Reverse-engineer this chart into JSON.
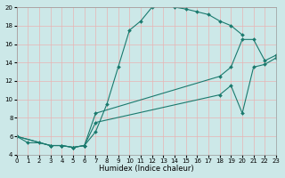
{
  "xlabel": "Humidex (Indice chaleur)",
  "xlim": [
    0,
    23
  ],
  "ylim": [
    4,
    20
  ],
  "yticks": [
    4,
    6,
    8,
    10,
    12,
    14,
    16,
    18,
    20
  ],
  "xticks": [
    0,
    1,
    2,
    3,
    4,
    5,
    6,
    7,
    8,
    9,
    10,
    11,
    12,
    13,
    14,
    15,
    16,
    17,
    18,
    19,
    20,
    21,
    22,
    23
  ],
  "bg_color": "#cce8e8",
  "grid_color": "#e8b4b4",
  "line_color": "#1a7a6e",
  "curve1_x": [
    0,
    1,
    2,
    3,
    4,
    5,
    6,
    7,
    8,
    9,
    10,
    11,
    12,
    13,
    14,
    15,
    16,
    17,
    18,
    19,
    20
  ],
  "curve1_y": [
    6,
    5.3,
    5.3,
    5.0,
    5.0,
    4.8,
    5.0,
    6.5,
    9.5,
    13.5,
    17.5,
    18.5,
    20.0,
    20.3,
    20.0,
    19.8,
    19.5,
    19.2,
    18.5,
    18.0,
    17.0
  ],
  "curve2_x": [
    0,
    3,
    4,
    5,
    6,
    7,
    18,
    19,
    20,
    21,
    22,
    23
  ],
  "curve2_y": [
    6,
    5.0,
    5.0,
    4.8,
    5.0,
    8.5,
    12.5,
    13.5,
    16.5,
    16.5,
    14.2,
    14.8
  ],
  "curve3_x": [
    0,
    3,
    4,
    5,
    6,
    7,
    18,
    19,
    20,
    21,
    22,
    23
  ],
  "curve3_y": [
    6,
    5.0,
    5.0,
    4.8,
    5.0,
    7.5,
    10.5,
    11.5,
    8.5,
    13.5,
    13.8,
    14.5
  ]
}
